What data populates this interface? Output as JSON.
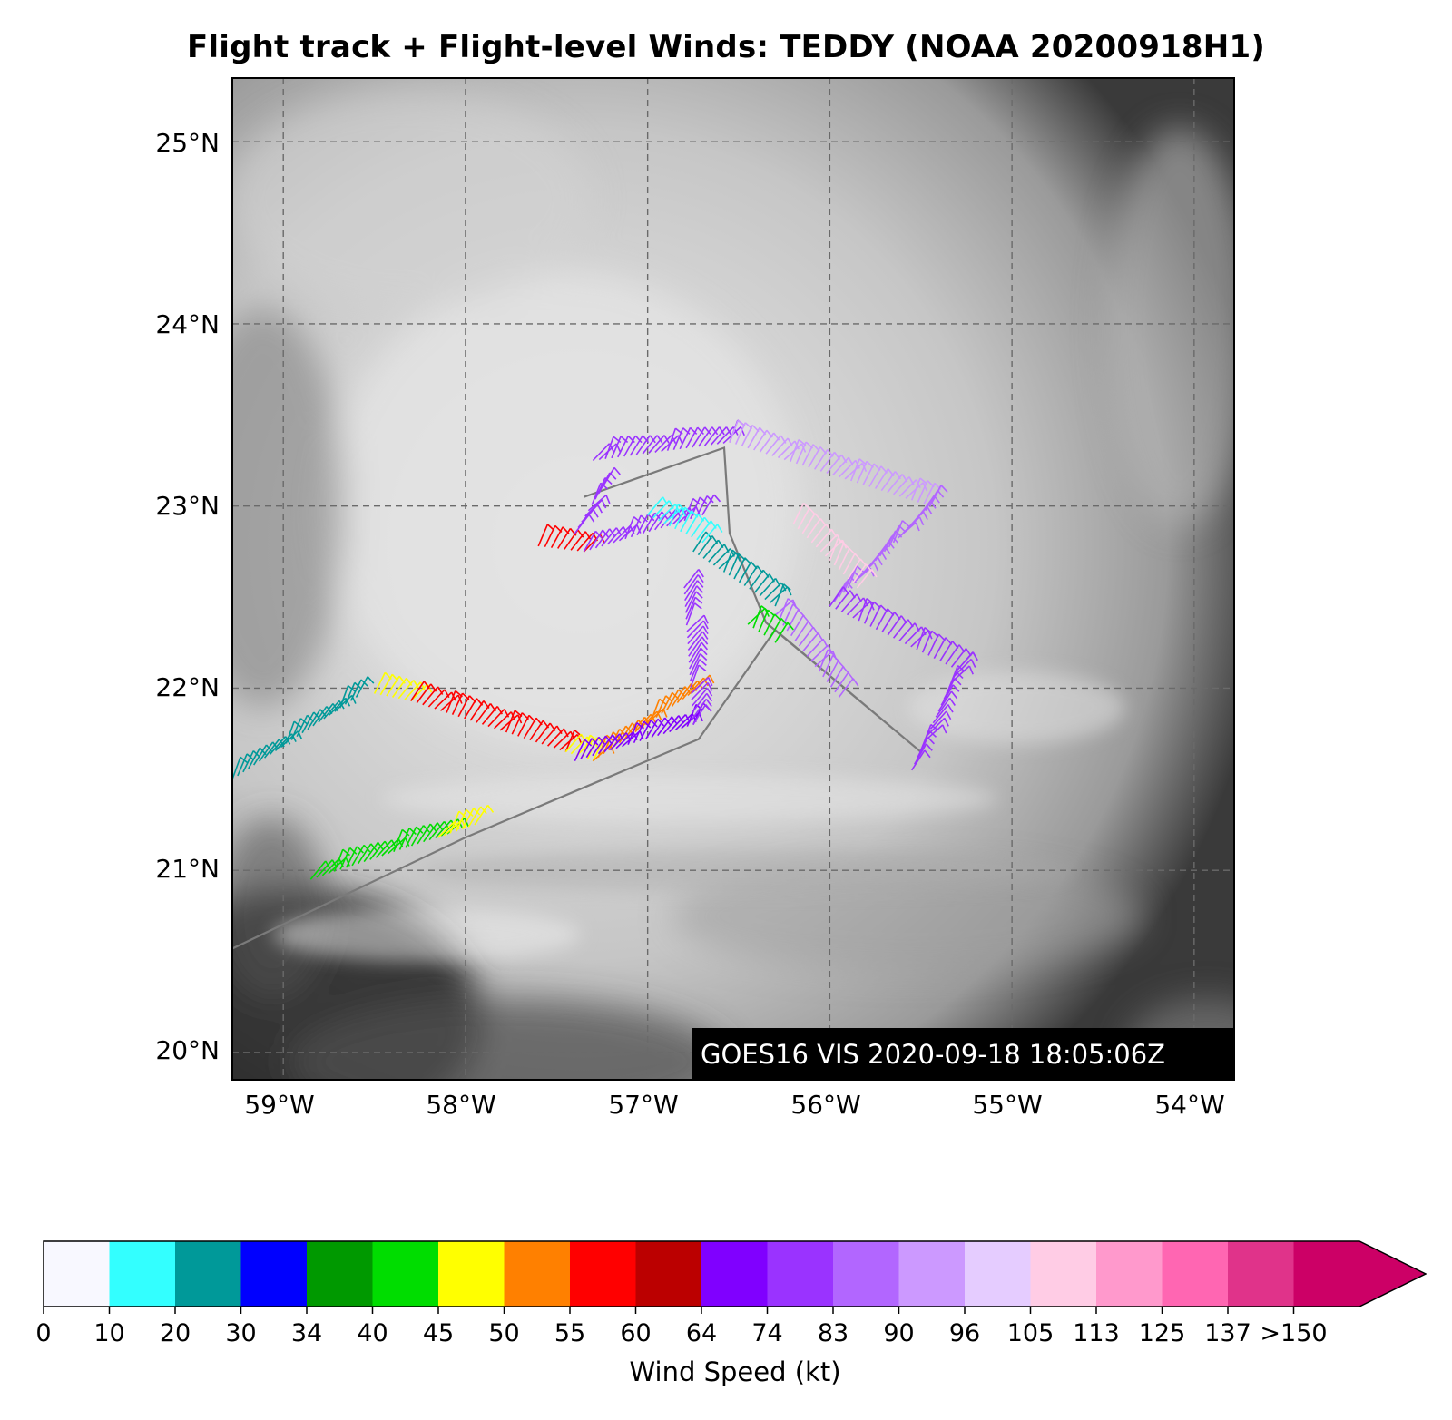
{
  "title": "Flight track + Flight-level Winds: TEDDY (NOAA 20200918H1)",
  "map": {
    "lat_labels": [
      "25°N",
      "24°N",
      "23°N",
      "22°N",
      "21°N",
      "20°N"
    ],
    "lon_labels": [
      "59°W",
      "58°W",
      "57°W",
      "56°W",
      "55°W",
      "54°W"
    ],
    "extent": {
      "lon_min": -59.28,
      "lon_max": -53.78,
      "lat_min": 19.85,
      "lat_max": 25.35
    },
    "gridlines": true,
    "background": "satellite visible imagery (grayscale)",
    "stamp": "GOES16 VIS 2020-09-18 18:05:06Z"
  },
  "chart_data": {
    "type": "map",
    "flight_track": [
      [
        -59.28,
        20.57
      ],
      [
        -58.0,
        21.18
      ],
      [
        -56.72,
        21.72
      ],
      [
        -56.3,
        22.32
      ],
      [
        -55.5,
        21.65
      ],
      [
        -56.35,
        22.36
      ],
      [
        -56.55,
        22.85
      ],
      [
        -56.58,
        23.32
      ],
      [
        -57.35,
        23.05
      ]
    ],
    "wind_segments": [
      {
        "lon": [
          -59.28,
          -58.6
        ],
        "lat": [
          21.5,
          21.95
        ],
        "speed_kt": 22
      },
      {
        "lon": [
          -58.5,
          -58.3
        ],
        "lat": [
          21.97,
          21.93
        ],
        "speed_kt": 47
      },
      {
        "lon": [
          -58.3,
          -57.45
        ],
        "lat": [
          21.93,
          21.65
        ],
        "speed_kt": 58
      },
      {
        "lon": [
          -57.45,
          -57.3
        ],
        "lat": [
          21.65,
          21.6
        ],
        "speed_kt": 48
      },
      {
        "lon": [
          -57.3,
          -56.75
        ],
        "lat": [
          21.6,
          21.98
        ],
        "speed_kt": 52
      },
      {
        "lon": [
          -57.4,
          -56.75
        ],
        "lat": [
          21.6,
          21.8
        ],
        "speed_kt": 68
      },
      {
        "lon": [
          -56.75,
          -56.8
        ],
        "lat": [
          21.8,
          22.55
        ],
        "speed_kt": 78
      },
      {
        "lon": [
          -58.85,
          -58.1
        ],
        "lat": [
          20.95,
          21.2
        ],
        "speed_kt": 42
      },
      {
        "lon": [
          -58.15,
          -57.95
        ],
        "lat": [
          21.18,
          21.25
        ],
        "speed_kt": 47
      },
      {
        "lon": [
          -57.6,
          -57.35
        ],
        "lat": [
          22.78,
          22.75
        ],
        "speed_kt": 58
      },
      {
        "lon": [
          -57.35,
          -56.7
        ],
        "lat": [
          22.75,
          22.95
        ],
        "speed_kt": 78
      },
      {
        "lon": [
          -57.4,
          -57.25
        ],
        "lat": [
          22.85,
          23.1
        ],
        "speed_kt": 76
      },
      {
        "lon": [
          -57.3,
          -56.55
        ],
        "lat": [
          23.25,
          23.35
        ],
        "speed_kt": 80
      },
      {
        "lon": [
          -56.55,
          -55.45
        ],
        "lat": [
          23.35,
          23.0
        ],
        "speed_kt": 92
      },
      {
        "lon": [
          -55.45,
          -56.0
        ],
        "lat": [
          23.0,
          22.45
        ],
        "speed_kt": 86
      },
      {
        "lon": [
          -56.0,
          -55.3
        ],
        "lat": [
          22.45,
          22.1
        ],
        "speed_kt": 82
      },
      {
        "lon": [
          -55.3,
          -55.55
        ],
        "lat": [
          22.1,
          21.55
        ],
        "speed_kt": 76
      },
      {
        "lon": [
          -56.3,
          -55.95
        ],
        "lat": [
          22.4,
          21.95
        ],
        "speed_kt": 85
      },
      {
        "lon": [
          -56.2,
          -55.85
        ],
        "lat": [
          22.9,
          22.55
        ],
        "speed_kt": 110
      },
      {
        "lon": [
          -56.75,
          -56.3
        ],
        "lat": [
          22.75,
          22.45
        ],
        "speed_kt": 25
      },
      {
        "lon": [
          -57.0,
          -56.7
        ],
        "lat": [
          22.95,
          22.8
        ],
        "speed_kt": 15
      },
      {
        "lon": [
          -56.45,
          -56.3
        ],
        "lat": [
          22.35,
          22.25
        ],
        "speed_kt": 42
      }
    ],
    "colorbar": {
      "label": "Wind Speed (kt)",
      "tick_labels": [
        "0",
        "10",
        "20",
        "30",
        "34",
        "40",
        "45",
        "50",
        "55",
        "60",
        "64",
        "74",
        "83",
        "90",
        "96",
        "105",
        "113",
        "125",
        "137",
        ">150"
      ],
      "bounds": [
        0,
        10,
        20,
        30,
        34,
        40,
        45,
        50,
        55,
        60,
        64,
        74,
        83,
        90,
        96,
        105,
        113,
        125,
        137,
        150
      ],
      "colors": [
        "#f8f8ff",
        "#33ffff",
        "#009999",
        "#0000ff",
        "#009900",
        "#00dd00",
        "#ffff00",
        "#ff8000",
        "#ff0000",
        "#bb0000",
        "#8000ff",
        "#9a33ff",
        "#b266ff",
        "#cc99ff",
        "#e5ccff",
        "#ffcce5",
        "#ff99cc",
        "#ff66b2",
        "#e0338a",
        "#cc0066"
      ],
      "extend": "max"
    }
  }
}
